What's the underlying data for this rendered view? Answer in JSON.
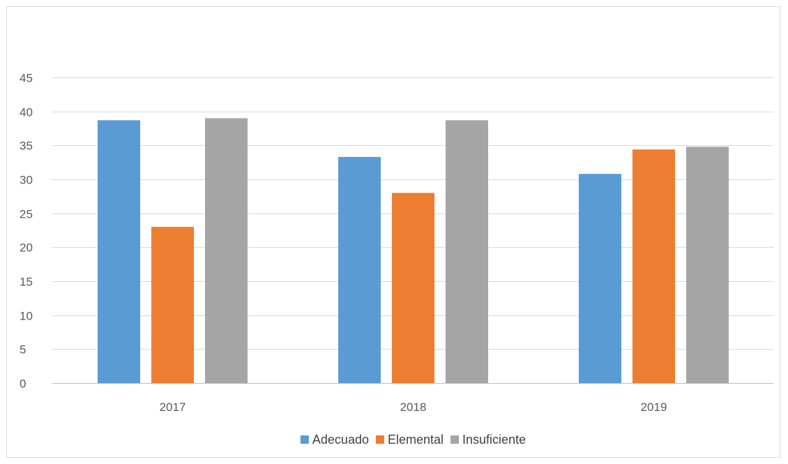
{
  "chart_data": {
    "type": "bar",
    "categories": [
      "2017",
      "2018",
      "2019"
    ],
    "series": [
      {
        "name": "Adecuado",
        "values": [
          38.7,
          33.3,
          30.8
        ],
        "color": "#5b9bd5"
      },
      {
        "name": "Elemental",
        "values": [
          23.0,
          28.0,
          34.4
        ],
        "color": "#ed7d31"
      },
      {
        "name": "Insuficiente",
        "values": [
          39.0,
          38.7,
          34.8
        ],
        "color": "#a5a5a5"
      }
    ],
    "ylim": [
      0,
      45
    ],
    "yticks": [
      0,
      5,
      10,
      15,
      20,
      25,
      30,
      35,
      40,
      45
    ],
    "grid": true,
    "legend_position": "bottom"
  }
}
